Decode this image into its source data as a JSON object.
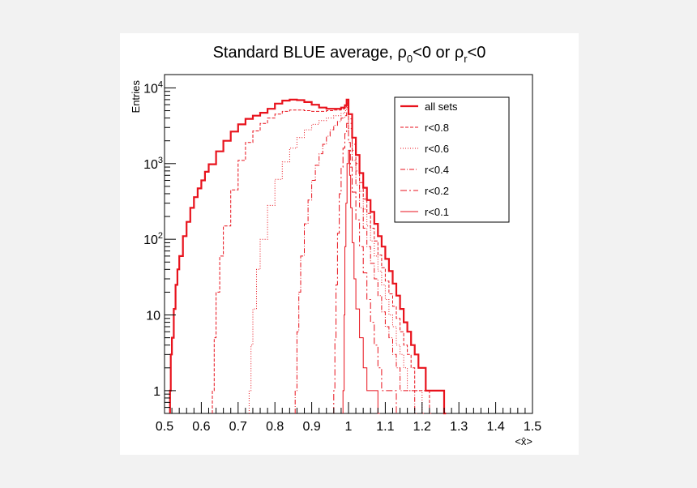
{
  "chart_data": {
    "type": "histogram-step",
    "title": {
      "main": "Standard BLUE average, ",
      "rho": "ρ",
      "sub0": "0",
      "mid": "<0 or ",
      "subr": "r",
      "end": "<0"
    },
    "ylabel": "Entries",
    "xlabel": "<x̂>",
    "xlim": [
      0.5,
      1.5
    ],
    "ylim": [
      0.5,
      15000
    ],
    "log_y": true,
    "grid": false,
    "x_ticks": [
      "0.5",
      "0.6",
      "0.7",
      "0.8",
      "0.9",
      "1",
      "1.1",
      "1.2",
      "1.3",
      "1.4",
      "1.5"
    ],
    "y_ticks": [
      {
        "base": "1",
        "exp": "",
        "value": 1
      },
      {
        "base": "10",
        "exp": "",
        "value": 10
      },
      {
        "base": "10",
        "exp": "2",
        "value": 100
      },
      {
        "base": "10",
        "exp": "3",
        "value": 1000
      },
      {
        "base": "10",
        "exp": "4",
        "value": 10000
      }
    ],
    "legend_position": "top-right",
    "series": [
      {
        "name": "all sets",
        "dash": "",
        "width": 2.2,
        "points": [
          [
            0.515,
            1
          ],
          [
            0.517,
            3
          ],
          [
            0.52,
            5
          ],
          [
            0.525,
            12
          ],
          [
            0.53,
            25
          ],
          [
            0.535,
            40
          ],
          [
            0.54,
            60
          ],
          [
            0.55,
            110
          ],
          [
            0.56,
            170
          ],
          [
            0.57,
            260
          ],
          [
            0.58,
            360
          ],
          [
            0.59,
            470
          ],
          [
            0.6,
            600
          ],
          [
            0.61,
            780
          ],
          [
            0.62,
            980
          ],
          [
            0.64,
            1450
          ],
          [
            0.66,
            2000
          ],
          [
            0.68,
            2650
          ],
          [
            0.7,
            3300
          ],
          [
            0.72,
            3900
          ],
          [
            0.74,
            4300
          ],
          [
            0.76,
            4700
          ],
          [
            0.78,
            5300
          ],
          [
            0.8,
            6200
          ],
          [
            0.82,
            6800
          ],
          [
            0.84,
            7000
          ],
          [
            0.86,
            6900
          ],
          [
            0.88,
            6500
          ],
          [
            0.9,
            6000
          ],
          [
            0.92,
            5500
          ],
          [
            0.94,
            5300
          ],
          [
            0.96,
            5300
          ],
          [
            0.98,
            5500
          ],
          [
            0.99,
            5900
          ],
          [
            0.995,
            7000
          ],
          [
            1.0,
            4500
          ],
          [
            1.01,
            2200
          ],
          [
            1.02,
            1300
          ],
          [
            1.03,
            750
          ],
          [
            1.04,
            480
          ],
          [
            1.05,
            330
          ],
          [
            1.06,
            230
          ],
          [
            1.07,
            160
          ],
          [
            1.08,
            110
          ],
          [
            1.09,
            80
          ],
          [
            1.1,
            55
          ],
          [
            1.11,
            38
          ],
          [
            1.12,
            26
          ],
          [
            1.13,
            18
          ],
          [
            1.14,
            12
          ],
          [
            1.15,
            8
          ],
          [
            1.16,
            6
          ],
          [
            1.17,
            4
          ],
          [
            1.18,
            3
          ],
          [
            1.19,
            2
          ],
          [
            1.2,
            2
          ],
          [
            1.21,
            1
          ],
          [
            1.23,
            1
          ],
          [
            1.25,
            1
          ],
          [
            1.26,
            0
          ]
        ]
      },
      {
        "name": "r<0.8",
        "dash": "4,2",
        "width": 1,
        "points": [
          [
            0.63,
            1
          ],
          [
            0.635,
            5
          ],
          [
            0.64,
            20
          ],
          [
            0.65,
            60
          ],
          [
            0.66,
            150
          ],
          [
            0.68,
            450
          ],
          [
            0.7,
            1100
          ],
          [
            0.72,
            1900
          ],
          [
            0.74,
            2700
          ],
          [
            0.76,
            3400
          ],
          [
            0.78,
            4000
          ],
          [
            0.8,
            4500
          ],
          [
            0.82,
            4900
          ],
          [
            0.84,
            5100
          ],
          [
            0.86,
            5100
          ],
          [
            0.88,
            5000
          ],
          [
            0.9,
            4900
          ],
          [
            0.92,
            4900
          ],
          [
            0.94,
            5000
          ],
          [
            0.96,
            5100
          ],
          [
            0.98,
            5300
          ],
          [
            0.99,
            5600
          ],
          [
            0.995,
            6300
          ],
          [
            1.0,
            3900
          ],
          [
            1.01,
            1800
          ],
          [
            1.02,
            1000
          ],
          [
            1.03,
            560
          ],
          [
            1.04,
            340
          ],
          [
            1.05,
            220
          ],
          [
            1.06,
            140
          ],
          [
            1.07,
            95
          ],
          [
            1.08,
            62
          ],
          [
            1.09,
            42
          ],
          [
            1.1,
            28
          ],
          [
            1.11,
            19
          ],
          [
            1.12,
            13
          ],
          [
            1.13,
            9
          ],
          [
            1.14,
            6
          ],
          [
            1.15,
            4
          ],
          [
            1.16,
            3
          ],
          [
            1.17,
            2
          ],
          [
            1.18,
            1
          ],
          [
            1.2,
            1
          ],
          [
            1.22,
            0
          ]
        ]
      },
      {
        "name": "r<0.6",
        "dash": "1,2",
        "width": 1,
        "points": [
          [
            0.73,
            1
          ],
          [
            0.735,
            4
          ],
          [
            0.74,
            12
          ],
          [
            0.75,
            40
          ],
          [
            0.76,
            100
          ],
          [
            0.78,
            280
          ],
          [
            0.8,
            620
          ],
          [
            0.82,
            1050
          ],
          [
            0.84,
            1600
          ],
          [
            0.86,
            2200
          ],
          [
            0.88,
            2800
          ],
          [
            0.9,
            3300
          ],
          [
            0.92,
            3700
          ],
          [
            0.94,
            4000
          ],
          [
            0.96,
            4300
          ],
          [
            0.98,
            4600
          ],
          [
            0.99,
            5000
          ],
          [
            0.995,
            5500
          ],
          [
            1.0,
            3400
          ],
          [
            1.01,
            1500
          ],
          [
            1.02,
            800
          ],
          [
            1.03,
            430
          ],
          [
            1.04,
            250
          ],
          [
            1.05,
            150
          ],
          [
            1.06,
            95
          ],
          [
            1.07,
            60
          ],
          [
            1.08,
            38
          ],
          [
            1.09,
            25
          ],
          [
            1.1,
            16
          ],
          [
            1.11,
            10
          ],
          [
            1.12,
            7
          ],
          [
            1.13,
            4
          ],
          [
            1.14,
            3
          ],
          [
            1.15,
            2
          ],
          [
            1.16,
            1
          ],
          [
            1.18,
            1
          ],
          [
            1.2,
            0
          ]
        ]
      },
      {
        "name": "r<0.4",
        "dash": "6,2,1,2",
        "width": 1,
        "points": [
          [
            0.855,
            1
          ],
          [
            0.86,
            6
          ],
          [
            0.865,
            20
          ],
          [
            0.87,
            60
          ],
          [
            0.88,
            160
          ],
          [
            0.89,
            330
          ],
          [
            0.9,
            600
          ],
          [
            0.91,
            950
          ],
          [
            0.92,
            1350
          ],
          [
            0.93,
            1800
          ],
          [
            0.94,
            2300
          ],
          [
            0.95,
            2800
          ],
          [
            0.96,
            3200
          ],
          [
            0.97,
            3600
          ],
          [
            0.98,
            4000
          ],
          [
            0.99,
            4300
          ],
          [
            0.995,
            4700
          ],
          [
            1.0,
            2900
          ],
          [
            1.01,
            1100
          ],
          [
            1.02,
            520
          ],
          [
            1.03,
            260
          ],
          [
            1.04,
            140
          ],
          [
            1.05,
            80
          ],
          [
            1.06,
            48
          ],
          [
            1.07,
            30
          ],
          [
            1.08,
            18
          ],
          [
            1.09,
            11
          ],
          [
            1.1,
            7
          ],
          [
            1.11,
            5
          ],
          [
            1.12,
            3
          ],
          [
            1.13,
            2
          ],
          [
            1.14,
            1
          ],
          [
            1.16,
            1
          ],
          [
            1.18,
            0
          ]
        ]
      },
      {
        "name": "r<0.2",
        "dash": "8,3,2,3",
        "width": 1,
        "points": [
          [
            0.96,
            1
          ],
          [
            0.963,
            5
          ],
          [
            0.966,
            25
          ],
          [
            0.97,
            120
          ],
          [
            0.975,
            400
          ],
          [
            0.98,
            900
          ],
          [
            0.985,
            1600
          ],
          [
            0.99,
            2500
          ],
          [
            0.995,
            3400
          ],
          [
            1.0,
            1900
          ],
          [
            1.005,
            900
          ],
          [
            1.01,
            420
          ],
          [
            1.02,
            180
          ],
          [
            1.03,
            80
          ],
          [
            1.04,
            36
          ],
          [
            1.05,
            16
          ],
          [
            1.06,
            8
          ],
          [
            1.07,
            4
          ],
          [
            1.08,
            2
          ],
          [
            1.09,
            1
          ],
          [
            1.11,
            1
          ],
          [
            1.13,
            0
          ]
        ]
      },
      {
        "name": "r<0.1",
        "dash": "",
        "width": 1,
        "points": [
          [
            0.985,
            1
          ],
          [
            0.988,
            10
          ],
          [
            0.99,
            80
          ],
          [
            0.993,
            300
          ],
          [
            0.996,
            1000
          ],
          [
            1.0,
            1500
          ],
          [
            1.003,
            700
          ],
          [
            1.006,
            260
          ],
          [
            1.01,
            90
          ],
          [
            1.015,
            30
          ],
          [
            1.02,
            12
          ],
          [
            1.03,
            5
          ],
          [
            1.04,
            2
          ],
          [
            1.05,
            1
          ],
          [
            1.07,
            1
          ],
          [
            1.08,
            0
          ]
        ]
      }
    ]
  }
}
